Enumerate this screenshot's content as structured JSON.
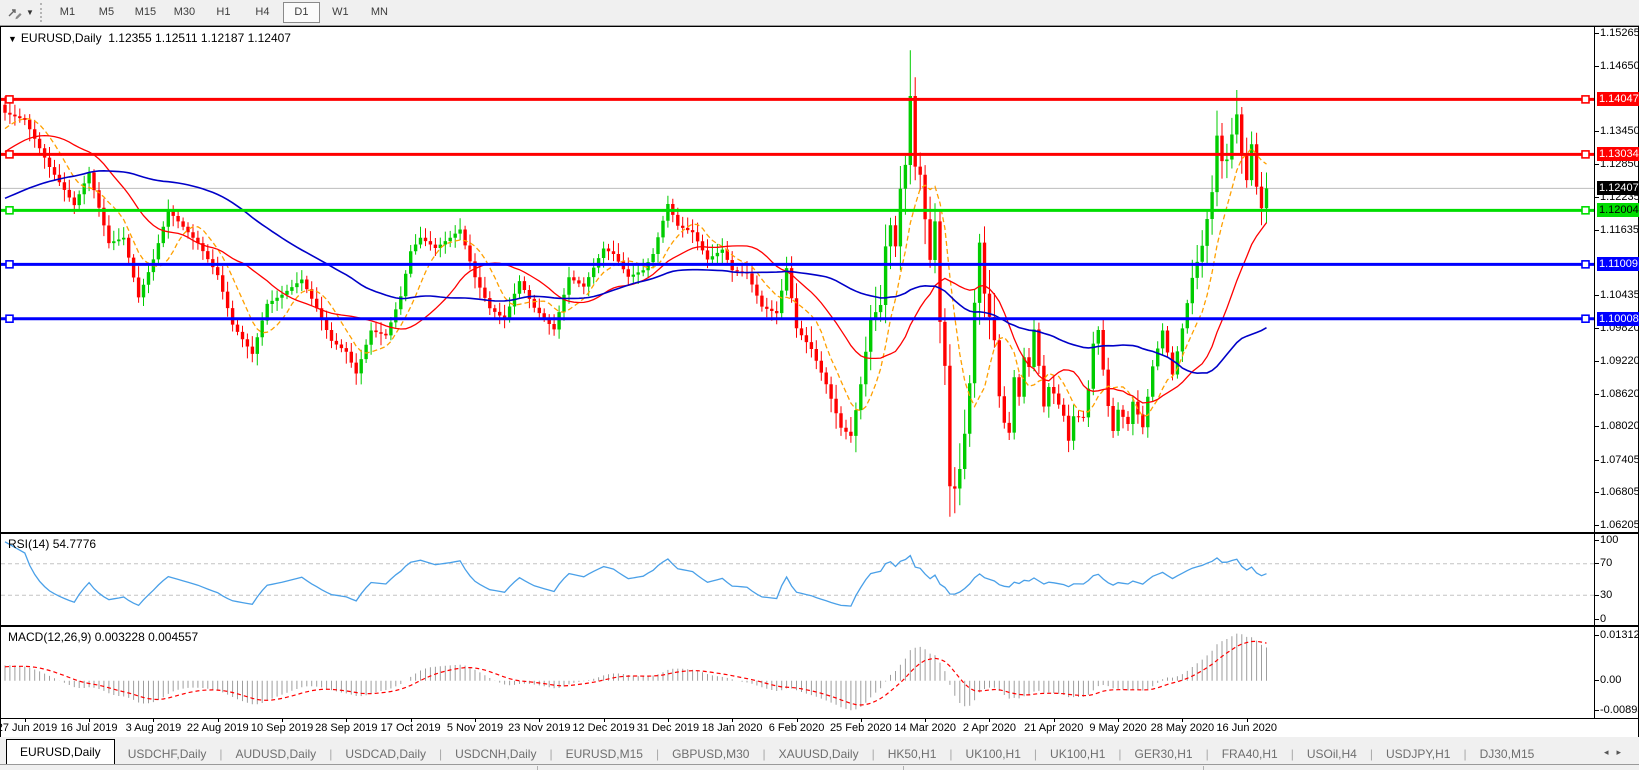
{
  "toolbar": {
    "timeframes": [
      {
        "label": "M1",
        "active": false
      },
      {
        "label": "M5",
        "active": false
      },
      {
        "label": "M15",
        "active": false
      },
      {
        "label": "M30",
        "active": false
      },
      {
        "label": "H1",
        "active": false
      },
      {
        "label": "H4",
        "active": false
      },
      {
        "label": "D1",
        "active": true
      },
      {
        "label": "W1",
        "active": false
      },
      {
        "label": "MN",
        "active": false
      }
    ]
  },
  "chart": {
    "title": "EURUSD,Daily",
    "ohlc": {
      "open": "1.12355",
      "high": "1.12511",
      "low": "1.12187",
      "close": "1.12407"
    }
  },
  "price_axis": {
    "ticks": [
      "1.15265",
      "1.14650",
      "1.13450",
      "1.12850",
      "1.12235",
      "1.11635",
      "1.10435",
      "1.09820",
      "1.09220",
      "1.08620",
      "1.08020",
      "1.07405",
      "1.06805",
      "1.06205"
    ]
  },
  "rsi_panel": {
    "label": "RSI(14)",
    "value": "54.7776",
    "axis": [
      "100",
      "70",
      "30",
      "0"
    ]
  },
  "macd_panel": {
    "label": "MACD(12,26,9)",
    "values": "0.003228 0.004557",
    "axis": [
      "0.013121",
      "0.00",
      "-0.008933"
    ]
  },
  "date_axis": [
    "27 Jun 2019",
    "16 Jul 2019",
    "3 Aug 2019",
    "22 Aug 2019",
    "10 Sep 2019",
    "28 Sep 2019",
    "17 Oct 2019",
    "5 Nov 2019",
    "23 Nov 2019",
    "12 Dec 2019",
    "31 Dec 2019",
    "18 Jan 2020",
    "6 Feb 2020",
    "25 Feb 2020",
    "14 Mar 2020",
    "2 Apr 2020",
    "21 Apr 2020",
    "9 May 2020",
    "28 May 2020",
    "16 Jun 2020"
  ],
  "tabs": [
    {
      "label": "EURUSD,Daily",
      "active": true
    },
    {
      "label": "USDCHF,Daily",
      "active": false
    },
    {
      "label": "AUDUSD,Daily",
      "active": false
    },
    {
      "label": "USDCAD,Daily",
      "active": false
    },
    {
      "label": "USDCNH,Daily",
      "active": false
    },
    {
      "label": "EURUSD,M15",
      "active": false
    },
    {
      "label": "GBPUSD,M30",
      "active": false
    },
    {
      "label": "XAUUSD,Daily",
      "active": false
    },
    {
      "label": "HK50,H1",
      "active": false
    },
    {
      "label": "UK100,H1",
      "active": false
    },
    {
      "label": "UK100,H1",
      "active": false
    },
    {
      "label": "GER30,H1",
      "active": false
    },
    {
      "label": "FRA40,H1",
      "active": false
    },
    {
      "label": "USOil,H4",
      "active": false
    },
    {
      "label": "USDJPY,H1",
      "active": false
    },
    {
      "label": "DJ30,M15",
      "active": false
    }
  ],
  "tab_scroll": {
    "left": "◂",
    "right": "▸"
  },
  "colors": {
    "bull": "#00cc00",
    "bear": "#ff0000",
    "ma_fast": "#ffa000",
    "ma_mid": "#ff0000",
    "ma_slow": "#0000c8",
    "rsi_line": "#4aa0e8",
    "macd_bar": "#9e9e9e",
    "macd_signal": "#ff0000",
    "level_dash": "#c4c4c4",
    "bid_line": "#bdbdbd",
    "bid_label_bg": "#000000",
    "bid_label_text": "#ffffff"
  },
  "chart_data": {
    "type": "candlestick",
    "symbol": "EURUSD",
    "period": "Daily",
    "n_candles": 256,
    "price_range": [
      1.1538,
      1.0608
    ],
    "close_keyframes": [
      [
        0,
        1.138
      ],
      [
        4,
        1.1367
      ],
      [
        9,
        1.128
      ],
      [
        14,
        1.121
      ],
      [
        17,
        1.127
      ],
      [
        21,
        1.114
      ],
      [
        24,
        1.115
      ],
      [
        27,
        1.104
      ],
      [
        30,
        1.111
      ],
      [
        33,
        1.12
      ],
      [
        36,
        1.117
      ],
      [
        39,
        1.114
      ],
      [
        43,
        1.1081
      ],
      [
        46,
        1.099
      ],
      [
        50,
        1.0936
      ],
      [
        53,
        1.1028
      ],
      [
        56,
        1.1045
      ],
      [
        60,
        1.1073
      ],
      [
        63,
        1.102
      ],
      [
        66,
        1.096
      ],
      [
        69,
        1.094
      ],
      [
        71,
        1.09
      ],
      [
        74,
        1.0979
      ],
      [
        77,
        1.097
      ],
      [
        80,
        1.1042
      ],
      [
        82,
        1.1125
      ],
      [
        84,
        1.115
      ],
      [
        87,
        1.1131
      ],
      [
        90,
        1.115
      ],
      [
        92,
        1.1165
      ],
      [
        95,
        1.1077
      ],
      [
        98,
        1.102
      ],
      [
        101,
        1.1
      ],
      [
        104,
        1.107
      ],
      [
        107,
        1.1021
      ],
      [
        111,
        1.0981
      ],
      [
        114,
        1.1077
      ],
      [
        117,
        1.106
      ],
      [
        121,
        1.113
      ],
      [
        123,
        1.112
      ],
      [
        126,
        1.1078
      ],
      [
        129,
        1.109
      ],
      [
        131,
        1.112
      ],
      [
        134,
        1.1212
      ],
      [
        136,
        1.1172
      ],
      [
        139,
        1.116
      ],
      [
        142,
        1.111
      ],
      [
        145,
        1.1128
      ],
      [
        147,
        1.109
      ],
      [
        150,
        1.1084
      ],
      [
        153,
        1.1023
      ],
      [
        156,
        1.1011
      ],
      [
        158,
        1.1094
      ],
      [
        160,
        1.0983
      ],
      [
        163,
        1.0945
      ],
      [
        166,
        1.088
      ],
      [
        169,
        1.08
      ],
      [
        171,
        1.0785
      ],
      [
        173,
        1.088
      ],
      [
        175,
        1.1
      ],
      [
        177,
        1.1026
      ],
      [
        178,
        1.1134
      ],
      [
        179,
        1.1173
      ],
      [
        180,
        1.1134
      ],
      [
        181,
        1.124
      ],
      [
        182,
        1.1284
      ],
      [
        183,
        1.1411
      ],
      [
        184,
        1.1281
      ],
      [
        185,
        1.1266
      ],
      [
        186,
        1.1184
      ],
      [
        187,
        1.1109
      ],
      [
        188,
        1.118
      ],
      [
        189,
        1.0995
      ],
      [
        190,
        1.0914
      ],
      [
        191,
        1.0692
      ],
      [
        192,
        1.0688
      ],
      [
        193,
        1.0724
      ],
      [
        194,
        1.0789
      ],
      [
        195,
        1.0882
      ],
      [
        196,
        1.103
      ],
      [
        197,
        1.1141
      ],
      [
        198,
        1.1047
      ],
      [
        200,
        1.0961
      ],
      [
        201,
        1.0858
      ],
      [
        202,
        1.0809
      ],
      [
        203,
        1.0791
      ],
      [
        204,
        1.0893
      ],
      [
        205,
        1.0857
      ],
      [
        206,
        1.093
      ],
      [
        207,
        1.0912
      ],
      [
        208,
        1.0981
      ],
      [
        209,
        1.0914
      ],
      [
        210,
        1.0839
      ],
      [
        211,
        1.0875
      ],
      [
        212,
        1.0863
      ],
      [
        214,
        1.0822
      ],
      [
        215,
        1.0776
      ],
      [
        216,
        1.0821
      ],
      [
        218,
        1.0819
      ],
      [
        219,
        1.0872
      ],
      [
        220,
        1.0955
      ],
      [
        221,
        1.098
      ],
      [
        222,
        1.0907
      ],
      [
        223,
        1.084
      ],
      [
        224,
        1.0794
      ],
      [
        225,
        1.0833
      ],
      [
        227,
        1.0807
      ],
      [
        228,
        1.0848
      ],
      [
        230,
        1.0801
      ],
      [
        232,
        1.0913
      ],
      [
        234,
        1.0979
      ],
      [
        236,
        1.0898
      ],
      [
        238,
        1.0983
      ],
      [
        240,
        1.1076
      ],
      [
        242,
        1.1135
      ],
      [
        244,
        1.1234
      ],
      [
        245,
        1.1338
      ],
      [
        246,
        1.1291
      ],
      [
        247,
        1.1294
      ],
      [
        248,
        1.134
      ],
      [
        249,
        1.1377
      ],
      [
        250,
        1.1301
      ],
      [
        251,
        1.1256
      ],
      [
        252,
        1.1322
      ],
      [
        253,
        1.1244
      ],
      [
        254,
        1.1204
      ],
      [
        255,
        1.12407
      ]
    ],
    "wick_spikes": [
      [
        71,
        "low",
        1.0879
      ],
      [
        158,
        "high",
        1.1095
      ],
      [
        183,
        "high",
        1.1495
      ],
      [
        191,
        "low",
        1.0636
      ],
      [
        245,
        "high",
        1.1384
      ],
      [
        249,
        "high",
        1.1422
      ]
    ],
    "prehistory_keyframes": [
      [
        0,
        1.118
      ],
      [
        20,
        1.112
      ],
      [
        35,
        1.123
      ],
      [
        50,
        1.13
      ],
      [
        59,
        1.137
      ]
    ],
    "moving_averages": [
      {
        "name": "ma-fast",
        "period": 8,
        "style": "dash"
      },
      {
        "name": "ma-mid",
        "period": 21,
        "style": "solid"
      },
      {
        "name": "ma-slow",
        "period": 55,
        "style": "solid"
      }
    ],
    "horizontal_lines": [
      {
        "price": 1.14047,
        "label": "1.14047",
        "color": "#ff0000",
        "label_text": "#ffffff"
      },
      {
        "price": 1.13034,
        "label": "1.13034",
        "color": "#ff0000",
        "label_text": "#ffffff"
      },
      {
        "price": 1.12004,
        "label": "1.12004",
        "color": "#00dd00",
        "label_text": "#000000"
      },
      {
        "price": 1.11009,
        "label": "1.11009",
        "color": "#0000ff",
        "label_text": "#ffffff"
      },
      {
        "price": 1.10008,
        "label": "1.10008",
        "color": "#0000ff",
        "label_text": "#ffffff"
      }
    ],
    "current_price": {
      "price": 1.12407,
      "label": "1.12407"
    },
    "rsi": {
      "period": 14,
      "levels": [
        70,
        30
      ],
      "current": 54.7776
    },
    "macd": {
      "fast": 12,
      "slow": 26,
      "signal": 9,
      "range": [
        0.013121,
        -0.008933
      ],
      "current_macd": 0.003228,
      "current_signal": 0.004557
    }
  }
}
